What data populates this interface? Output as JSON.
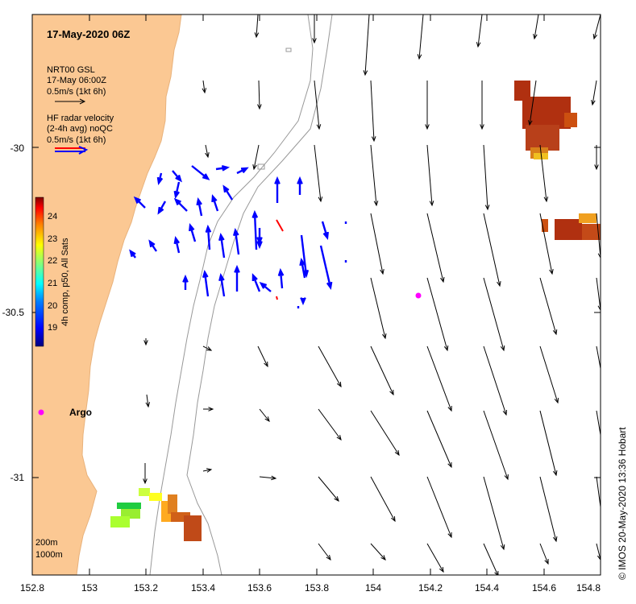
{
  "map": {
    "title": "17-May-2020 06Z",
    "legend": {
      "model": [
        "NRT00 GSL",
        "17-May 06:00Z",
        "0.5m/s (1kt 6h)"
      ],
      "radar": [
        "HF radar velocity",
        "(2-4h avg) noQC",
        "0.5m/s (1kt 6h)"
      ]
    },
    "colorbar": {
      "label": "4h comp, p50, All Sats",
      "ticks": [
        "24",
        "23",
        "22",
        "21",
        "20",
        "19"
      ],
      "colors": [
        "#00007f",
        "#0000ff",
        "#007fff",
        "#00ffff",
        "#7fff7f",
        "#ffff00",
        "#ff7f00",
        "#ff0000",
        "#7f0000"
      ]
    },
    "x_ticks": [
      "152.8",
      "153",
      "153.2",
      "153.4",
      "153.6",
      "153.8",
      "154",
      "154.2",
      "154.4",
      "154.6",
      "154.8"
    ],
    "y_ticks": [
      "-30",
      "-30.5",
      "-31"
    ],
    "argo_label": "Argo",
    "depth_labels": [
      "200m",
      "1000m"
    ],
    "credit": "© IMOS 20-May-2020 13:36 Hobart",
    "colors": {
      "land": "#fbc893",
      "coast": "#e8b27c",
      "model_arrow": "#000000",
      "radar_arrow": "#0000ff",
      "radar_flag": "#ff0000",
      "argo": "#ff00ff",
      "isobath": "#999999"
    }
  }
}
